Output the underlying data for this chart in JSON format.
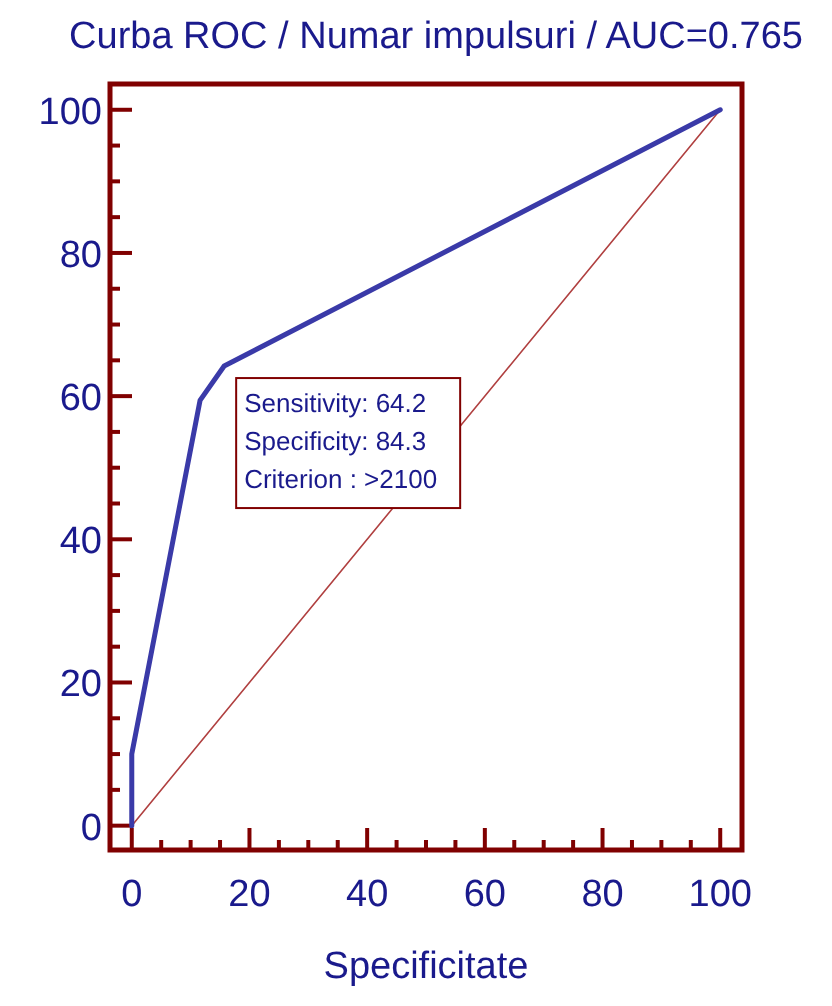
{
  "chart_data": {
    "type": "line",
    "title": "Curba ROC / Numar impulsuri / AUC=0.765",
    "xlabel": "Specificitate",
    "series": [
      {
        "color": "#3a3aa8",
        "x": [
          0,
          0,
          11.6,
          15.7,
          100
        ],
        "values": [
          0,
          10,
          59.4,
          64.2,
          100
        ]
      },
      {
        "color": "#b04040",
        "x": [
          0,
          100
        ],
        "values": [
          0,
          100
        ]
      }
    ],
    "xlim": [
      -3.7,
      103.7
    ],
    "ylim": [
      -3.4,
      103.6
    ],
    "xticks": [
      0,
      {
        "value": 5,
        "label": null
      },
      {
        "value": 10,
        "label": null
      },
      {
        "value": 15,
        "label": null
      },
      20,
      {
        "value": 25,
        "label": null
      },
      {
        "value": 30,
        "label": null
      },
      {
        "value": 35,
        "label": null
      },
      40,
      {
        "value": 45,
        "label": null
      },
      {
        "value": 50,
        "label": null
      },
      {
        "value": 55,
        "label": null
      },
      60,
      {
        "value": 65,
        "label": null
      },
      {
        "value": 70,
        "label": null
      },
      {
        "value": 75,
        "label": null
      },
      80,
      {
        "value": 85,
        "label": null
      },
      {
        "value": 90,
        "label": null
      },
      {
        "value": 95,
        "label": null
      },
      100
    ],
    "yticks": [
      0,
      {
        "value": 5,
        "label": null
      },
      {
        "value": 10,
        "label": null
      },
      {
        "value": 15,
        "label": null
      },
      20,
      {
        "value": 25,
        "label": null
      },
      {
        "value": 30,
        "label": null
      },
      {
        "value": 35,
        "label": null
      },
      40,
      {
        "value": 45,
        "label": null
      },
      {
        "value": 50,
        "label": null
      },
      {
        "value": 55,
        "label": null
      },
      60,
      {
        "value": 65,
        "label": null
      },
      {
        "value": 70,
        "label": null
      },
      {
        "value": 75,
        "label": null
      },
      80,
      {
        "value": 85,
        "label": null
      },
      {
        "value": 90,
        "label": null
      },
      {
        "value": 95,
        "label": null
      },
      100
    ],
    "annotations": [
      {
        "text": "Sensitivity: 64.2\nSpecificity: 84.3\nCriterion : >2100",
        "x": 15.7,
        "y": 64.2
      }
    ],
    "grid": false,
    "marker": "none",
    "line_style": "solid"
  }
}
